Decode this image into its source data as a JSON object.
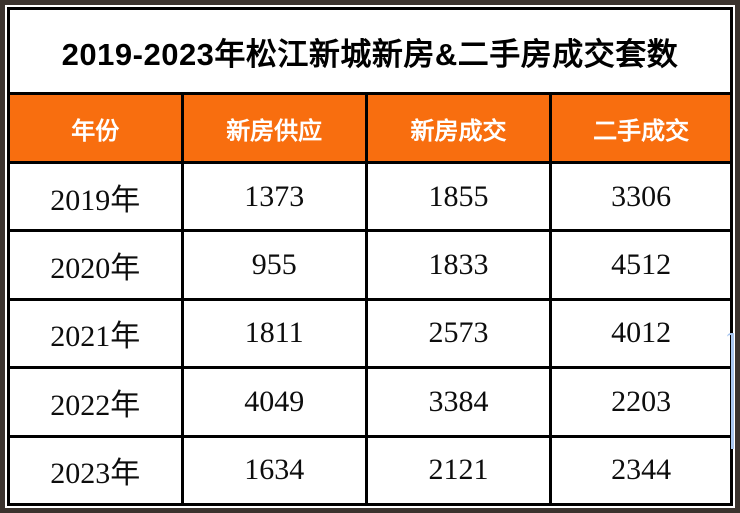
{
  "title": "2019-2023年松江新城新房&二手房成交套数",
  "table": {
    "columns": [
      "年份",
      "新房供应",
      "新房成交",
      "二手成交"
    ],
    "rows": [
      {
        "year": "2019年",
        "values": [
          "1373",
          "1855",
          "3306"
        ]
      },
      {
        "year": "2020年",
        "values": [
          "955",
          "1833",
          "4512"
        ]
      },
      {
        "year": "2021年",
        "values": [
          "1811",
          "2573",
          "4012"
        ]
      },
      {
        "year": "2022年",
        "values": [
          "4049",
          "3384",
          "2203"
        ]
      },
      {
        "year": "2023年",
        "values": [
          "1634",
          "2121",
          "2344"
        ]
      }
    ]
  },
  "chart_data": {
    "type": "table",
    "title": "2019-2023年松江新城新房&二手房成交套数",
    "columns": [
      "年份",
      "新房供应",
      "新房成交",
      "二手成交"
    ],
    "categories": [
      "2019年",
      "2020年",
      "2021年",
      "2022年",
      "2023年"
    ],
    "series": [
      {
        "name": "新房供应",
        "values": [
          1373,
          955,
          1811,
          4049,
          1634
        ]
      },
      {
        "name": "新房成交",
        "values": [
          1855,
          1833,
          2573,
          3384,
          2121
        ]
      },
      {
        "name": "二手成交",
        "values": [
          3306,
          4512,
          4012,
          2203,
          2344
        ]
      }
    ]
  },
  "colors": {
    "header_bg": "#f86e0f",
    "header_text": "#ffffff",
    "grid": "#000000",
    "frame": "#3b332e",
    "artifact_blue": "#a9c6ef"
  }
}
